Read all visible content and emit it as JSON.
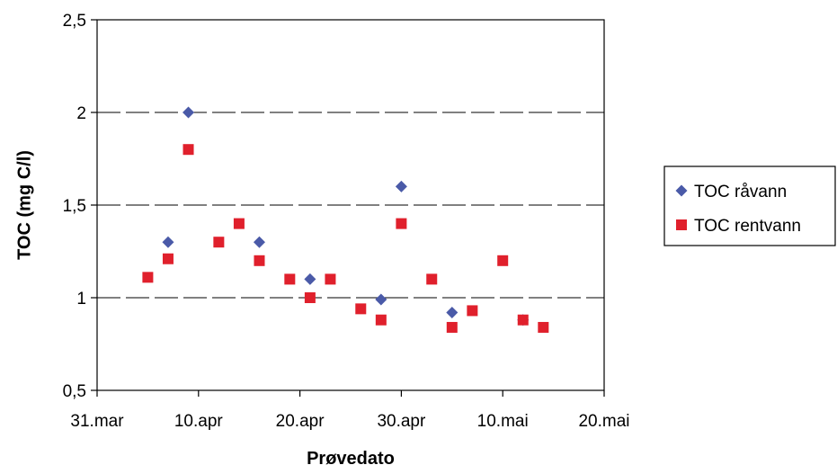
{
  "chart_data": {
    "type": "scatter",
    "xlabel": "Prøvedato",
    "ylabel": "TOC (mg C/l)",
    "xlim": [
      "2003-03-31",
      "2003-05-20"
    ],
    "ylim": [
      0.5,
      2.5
    ],
    "x_ticks": [
      {
        "date": "2003-03-31",
        "label": "31.mar"
      },
      {
        "date": "2003-04-10",
        "label": "10.apr"
      },
      {
        "date": "2003-04-20",
        "label": "20.apr"
      },
      {
        "date": "2003-04-30",
        "label": "30.apr"
      },
      {
        "date": "2003-05-10",
        "label": "10.mai"
      },
      {
        "date": "2003-05-20",
        "label": "20.mai"
      }
    ],
    "y_ticks": [
      {
        "value": 0.5,
        "label": "0,5"
      },
      {
        "value": 1.0,
        "label": "1"
      },
      {
        "value": 1.5,
        "label": "1,5"
      },
      {
        "value": 2.0,
        "label": "2"
      },
      {
        "value": 2.5,
        "label": "2,5"
      }
    ],
    "gridlines": "horizontal dashed",
    "legend_position": "right",
    "series": [
      {
        "name": "TOC råvann",
        "marker": "diamond",
        "color": "#4a5aa8",
        "points": [
          {
            "x": "2003-04-07",
            "y": 1.3
          },
          {
            "x": "2003-04-09",
            "y": 2.0
          },
          {
            "x": "2003-04-16",
            "y": 1.3
          },
          {
            "x": "2003-04-21",
            "y": 1.1
          },
          {
            "x": "2003-04-28",
            "y": 0.99
          },
          {
            "x": "2003-04-30",
            "y": 1.6
          },
          {
            "x": "2003-05-05",
            "y": 0.92
          },
          {
            "x": "2003-05-12",
            "y": 0.88
          }
        ]
      },
      {
        "name": "TOC rentvann",
        "marker": "square",
        "color": "#e0202c",
        "points": [
          {
            "x": "2003-04-05",
            "y": 1.11
          },
          {
            "x": "2003-04-07",
            "y": 1.21
          },
          {
            "x": "2003-04-09",
            "y": 1.8
          },
          {
            "x": "2003-04-12",
            "y": 1.3
          },
          {
            "x": "2003-04-14",
            "y": 1.4
          },
          {
            "x": "2003-04-16",
            "y": 1.2
          },
          {
            "x": "2003-04-19",
            "y": 1.1
          },
          {
            "x": "2003-04-21",
            "y": 1.0
          },
          {
            "x": "2003-04-23",
            "y": 1.1
          },
          {
            "x": "2003-04-26",
            "y": 0.94
          },
          {
            "x": "2003-04-28",
            "y": 0.88
          },
          {
            "x": "2003-04-30",
            "y": 1.4
          },
          {
            "x": "2003-05-03",
            "y": 1.1
          },
          {
            "x": "2003-05-05",
            "y": 0.84
          },
          {
            "x": "2003-05-07",
            "y": 0.93
          },
          {
            "x": "2003-05-10",
            "y": 1.2
          },
          {
            "x": "2003-05-12",
            "y": 0.88
          },
          {
            "x": "2003-05-14",
            "y": 0.84
          }
        ]
      }
    ]
  }
}
